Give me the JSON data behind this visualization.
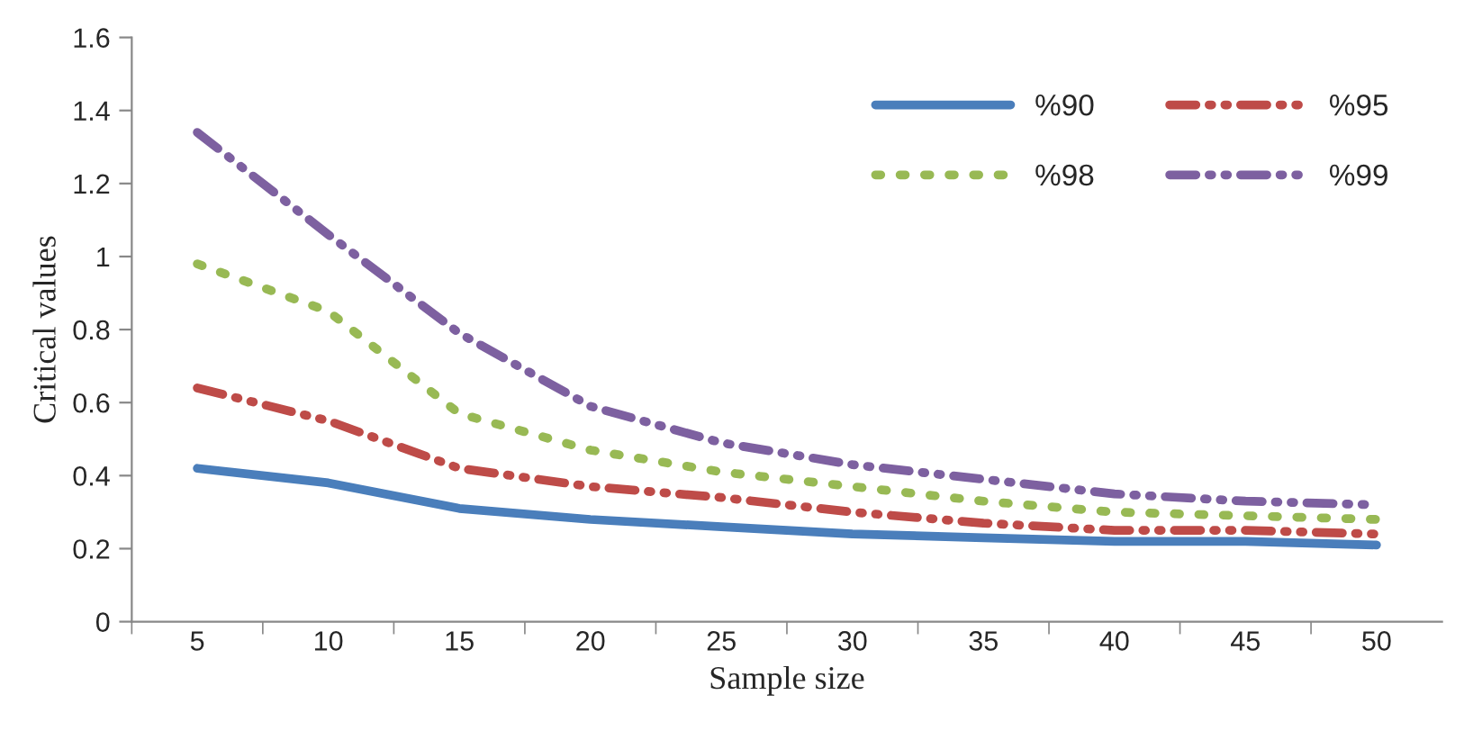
{
  "chart_data": {
    "type": "line",
    "xlabel": "Sample size",
    "ylabel": "Critical values",
    "categories": [
      "5",
      "10",
      "15",
      "20",
      "25",
      "30",
      "35",
      "40",
      "45",
      "50"
    ],
    "series": [
      {
        "name": "%90",
        "color": "#4a7ebb",
        "line_style": "solid",
        "values": [
          0.42,
          0.38,
          0.31,
          0.28,
          0.26,
          0.24,
          0.23,
          0.22,
          0.22,
          0.21
        ]
      },
      {
        "name": "%95",
        "color": "#be4b48",
        "line_style": "dashed",
        "values": [
          0.64,
          0.55,
          0.42,
          0.37,
          0.34,
          0.3,
          0.27,
          0.25,
          0.25,
          0.24
        ]
      },
      {
        "name": "%98",
        "color": "#98b954",
        "line_style": "dotted",
        "values": [
          0.98,
          0.85,
          0.57,
          0.47,
          0.41,
          0.37,
          0.33,
          0.3,
          0.29,
          0.28
        ]
      },
      {
        "name": "%99",
        "color": "#7d60a0",
        "line_style": "dashed",
        "values": [
          1.34,
          1.06,
          0.79,
          0.59,
          0.49,
          0.43,
          0.39,
          0.35,
          0.33,
          0.32
        ]
      }
    ],
    "ylim": [
      0,
      1.6
    ],
    "yticks": [
      0,
      0.2,
      0.4,
      0.6,
      0.8,
      1,
      1.2,
      1.4,
      1.6
    ],
    "grid": false,
    "legend": "top right"
  }
}
